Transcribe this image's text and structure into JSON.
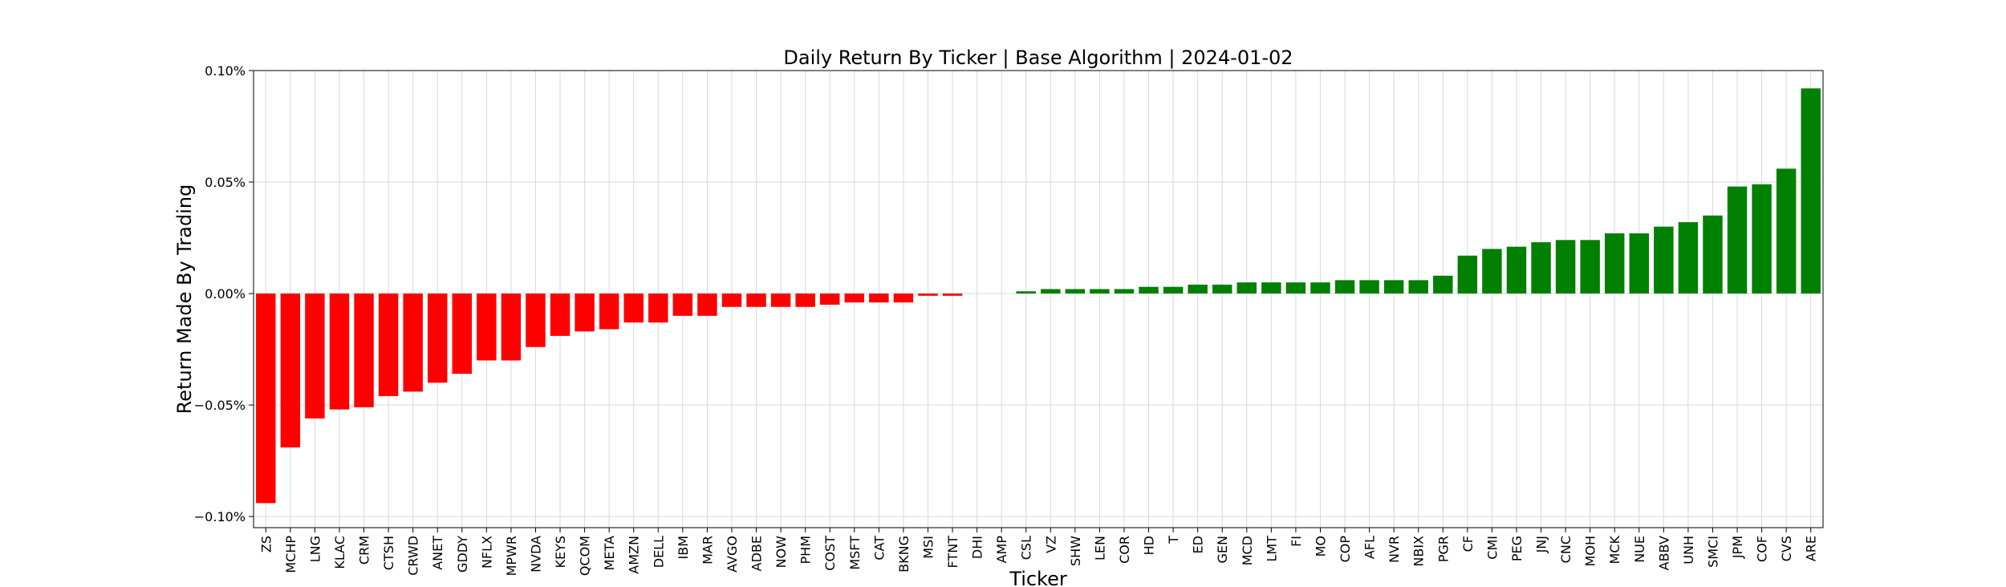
{
  "chart_data": {
    "type": "bar",
    "title": "Daily Return By Ticker | Base Algorithm | 2024-01-02",
    "xlabel": "Ticker",
    "ylabel": "Return Made By Trading",
    "ylim": [
      -0.105,
      0.1
    ],
    "yticks": [
      0.1,
      0.05,
      0.0,
      -0.05,
      -0.1
    ],
    "ytick_labels": [
      "0.10%",
      "0.05%",
      "0.00%",
      "−0.05%",
      "−0.10%"
    ],
    "grid": true,
    "colors": {
      "negative": "#ff0000",
      "positive": "#008000"
    },
    "categories": [
      "ZS",
      "MCHP",
      "LNG",
      "KLAC",
      "CRM",
      "CTSH",
      "CRWD",
      "ANET",
      "GDDY",
      "NFLX",
      "MPWR",
      "NVDA",
      "KEYS",
      "QCOM",
      "META",
      "AMZN",
      "DELL",
      "IBM",
      "MAR",
      "AVGO",
      "ADBE",
      "NOW",
      "PHM",
      "COST",
      "MSFT",
      "CAT",
      "BKNG",
      "MSI",
      "FTNT",
      "DHI",
      "AMP",
      "CSL",
      "VZ",
      "SHW",
      "LEN",
      "COR",
      "HD",
      "T",
      "ED",
      "GEN",
      "MCD",
      "LMT",
      "FI",
      "MO",
      "COP",
      "AFL",
      "NVR",
      "NBIX",
      "PGR",
      "CF",
      "CMI",
      "PEG",
      "JNJ",
      "CNC",
      "MOH",
      "MCK",
      "NUE",
      "ABBV",
      "UNH",
      "SMCI",
      "JPM",
      "COF",
      "CVS",
      "ARE"
    ],
    "values": [
      -0.094,
      -0.069,
      -0.056,
      -0.052,
      -0.051,
      -0.046,
      -0.044,
      -0.04,
      -0.036,
      -0.03,
      -0.03,
      -0.024,
      -0.019,
      -0.017,
      -0.016,
      -0.013,
      -0.013,
      -0.01,
      -0.01,
      -0.006,
      -0.006,
      -0.006,
      -0.006,
      -0.005,
      -0.004,
      -0.004,
      -0.004,
      -0.001,
      -0.001,
      0.0,
      0.0,
      0.001,
      0.002,
      0.002,
      0.002,
      0.002,
      0.003,
      0.003,
      0.004,
      0.004,
      0.005,
      0.005,
      0.005,
      0.005,
      0.006,
      0.006,
      0.006,
      0.006,
      0.008,
      0.017,
      0.02,
      0.021,
      0.023,
      0.024,
      0.024,
      0.027,
      0.027,
      0.03,
      0.032,
      0.035,
      0.048,
      0.049,
      0.056,
      0.092
    ]
  }
}
